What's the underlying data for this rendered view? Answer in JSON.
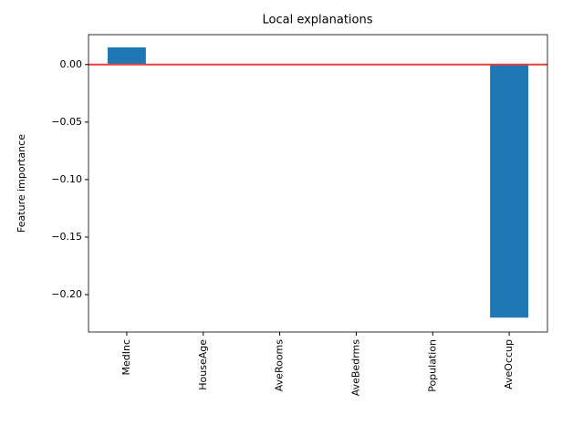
{
  "chart_data": {
    "type": "bar",
    "title": "Local explanations",
    "y_label": "Feature importance",
    "categories": [
      "MedInc",
      "HouseAge",
      "AveRooms",
      "AveBedrms",
      "Population",
      "AveOccup"
    ],
    "values": [
      0.015,
      0,
      0,
      0,
      0,
      -0.22
    ],
    "color": "#1f77b4",
    "ylim": [
      -0.2325,
      0.026
    ],
    "yticks": [
      {
        "value": 0,
        "label": "0.00"
      },
      {
        "value": -0.05,
        "label": "−0.05"
      },
      {
        "value": -0.1,
        "label": "−0.10"
      },
      {
        "value": -0.15,
        "label": "−0.15"
      },
      {
        "value": -0.2,
        "label": "−0.20"
      }
    ],
    "hline": 0,
    "hline_color": "#e8413c",
    "grid": false
  }
}
